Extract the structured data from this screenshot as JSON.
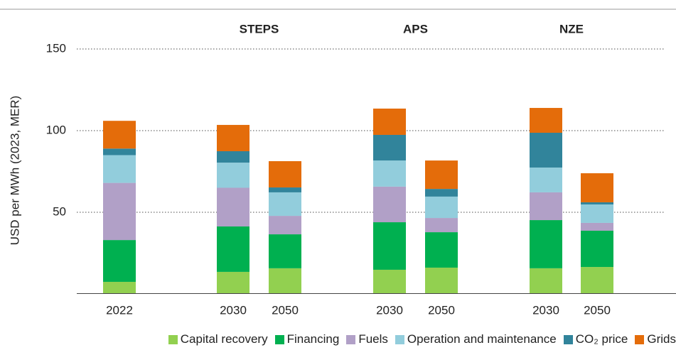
{
  "chart_data": {
    "type": "stacked-bar",
    "y_label": "USD per MWh (2023, MER)",
    "groups": [
      "STEPS",
      "APS",
      "NZE"
    ],
    "categories": [
      "2022",
      "2030",
      "2050",
      "2030",
      "2050",
      "2030",
      "2050"
    ],
    "series": [
      {
        "name": "Capital recovery",
        "color": "#92d050",
        "values": [
          7.4,
          13.5,
          15.7,
          14.8,
          16.1,
          15.7,
          16.5
        ]
      },
      {
        "name": "Financing",
        "color": "#00b050",
        "values": [
          25.6,
          27.8,
          20.8,
          29.1,
          21.7,
          29.5,
          22.2
        ]
      },
      {
        "name": "Fuels",
        "color": "#b1a0c7",
        "values": [
          35.0,
          23.7,
          11.3,
          21.8,
          8.7,
          17.0,
          4.8
        ]
      },
      {
        "name": "Operation and maintenance",
        "color": "#92cddc",
        "values": [
          17.0,
          15.4,
          14.4,
          16.0,
          13.1,
          15.2,
          11.3
        ]
      },
      {
        "name": "CO₂ price",
        "color": "#31849b",
        "values": [
          4.0,
          7.0,
          3.0,
          15.7,
          4.7,
          21.3,
          1.3
        ]
      },
      {
        "name": "Grids",
        "color": "#e46c0a",
        "values": [
          17.0,
          16.1,
          16.1,
          16.1,
          17.4,
          15.2,
          17.8
        ]
      }
    ],
    "ylim": [
      0,
      150
    ],
    "yticks": [
      50,
      100,
      150
    ],
    "grid": true
  }
}
